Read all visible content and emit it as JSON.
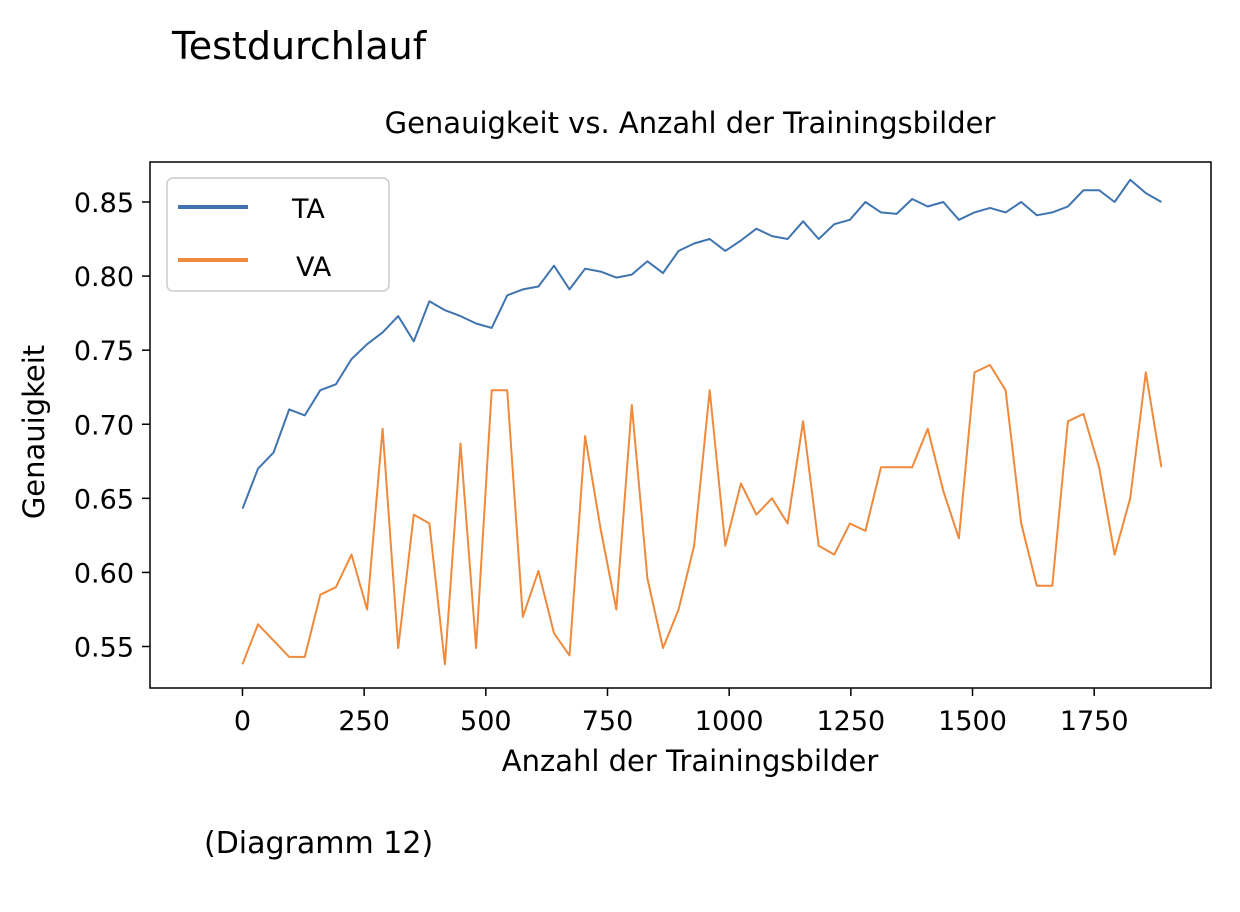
{
  "page_heading": "Testdurchlauf",
  "caption": "(Diagramm 12)",
  "chart_data": {
    "type": "line",
    "title": "Genauigkeit vs. Anzahl der Trainingsbilder",
    "xlabel": "Anzahl der Trainingsbilder",
    "ylabel": "Genauigkeit",
    "xlim": [
      -190,
      1990
    ],
    "ylim": [
      0.522,
      0.877
    ],
    "x_ticks": [
      0,
      250,
      500,
      750,
      1000,
      1250,
      1500,
      1750
    ],
    "x_tick_labels": [
      "0",
      "250",
      "500",
      "750",
      "1000",
      "1250",
      "1500",
      "1750"
    ],
    "y_ticks": [
      0.55,
      0.6,
      0.65,
      0.7,
      0.75,
      0.8,
      0.85
    ],
    "y_tick_labels": [
      "0.55",
      "0.60",
      "0.65",
      "0.70",
      "0.75",
      "0.80",
      "0.85"
    ],
    "grid": false,
    "legend_position": "top-left",
    "x": [
      0,
      32,
      64,
      96,
      128,
      160,
      192,
      224,
      256,
      288,
      320,
      352,
      384,
      416,
      448,
      480,
      512,
      544,
      576,
      608,
      640,
      672,
      704,
      736,
      768,
      800,
      832,
      864,
      896,
      928,
      960,
      992,
      1024,
      1056,
      1088,
      1120,
      1152,
      1184,
      1216,
      1248,
      1280,
      1312,
      1344,
      1376,
      1408,
      1440,
      1472,
      1504,
      1536,
      1568,
      1600,
      1632,
      1664,
      1696,
      1728,
      1760,
      1792,
      1824,
      1856,
      1888
    ],
    "series": [
      {
        "name": "TA",
        "color": "#3f74b0",
        "values": [
          0.643,
          0.67,
          0.681,
          0.71,
          0.706,
          0.723,
          0.727,
          0.744,
          0.754,
          0.762,
          0.773,
          0.756,
          0.783,
          0.777,
          0.773,
          0.768,
          0.765,
          0.787,
          0.791,
          0.793,
          0.807,
          0.791,
          0.805,
          0.803,
          0.799,
          0.801,
          0.81,
          0.802,
          0.817,
          0.822,
          0.825,
          0.817,
          0.824,
          0.832,
          0.827,
          0.825,
          0.837,
          0.825,
          0.835,
          0.838,
          0.85,
          0.843,
          0.842,
          0.852,
          0.847,
          0.85,
          0.838,
          0.843,
          0.846,
          0.843,
          0.85,
          0.841,
          0.843,
          0.847,
          0.858,
          0.858,
          0.85,
          0.865,
          0.856,
          0.85
        ]
      },
      {
        "name": "VA",
        "color": "#ef8a3c",
        "values": [
          0.538,
          0.565,
          0.554,
          0.543,
          0.543,
          0.585,
          0.59,
          0.612,
          0.575,
          0.697,
          0.549,
          0.639,
          0.633,
          0.538,
          0.687,
          0.549,
          0.723,
          0.723,
          0.57,
          0.601,
          0.559,
          0.544,
          0.692,
          0.629,
          0.575,
          0.713,
          0.596,
          0.549,
          0.575,
          0.618,
          0.723,
          0.618,
          0.66,
          0.639,
          0.65,
          0.633,
          0.702,
          0.618,
          0.612,
          0.633,
          0.628,
          0.671,
          0.671,
          0.671,
          0.697,
          0.655,
          0.623,
          0.735,
          0.74,
          0.723,
          0.633,
          0.591,
          0.591,
          0.702,
          0.707,
          0.671,
          0.612,
          0.65,
          0.735,
          0.671
        ]
      }
    ]
  }
}
